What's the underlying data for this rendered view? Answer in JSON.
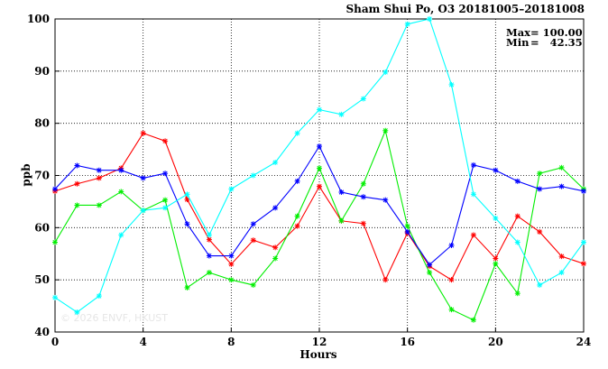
{
  "chart_data": {
    "type": "line",
    "title": "Sham Shui Po, O3 20181005–20181008",
    "xlabel": "Hours",
    "ylabel": "ppb",
    "xlim": [
      0,
      24
    ],
    "ylim": [
      40,
      100
    ],
    "x_ticks": [
      "0",
      "4",
      "8",
      "12",
      "16",
      "20",
      "24"
    ],
    "y_ticks": [
      "40",
      "50",
      "60",
      "70",
      "80",
      "90",
      "100"
    ],
    "grid": true,
    "stats": {
      "max_label": "Max",
      "max_value": "= 100.00",
      "min_label": "Min",
      "min_value": "=   42.35"
    },
    "watermark": "© 2026  ENVF, HKUST",
    "x": [
      0,
      1,
      2,
      3,
      4,
      5,
      6,
      7,
      8,
      9,
      10,
      11,
      12,
      13,
      14,
      15,
      16,
      17,
      18,
      19,
      20,
      21,
      22,
      23,
      24
    ],
    "series": [
      {
        "color": "#ff0000",
        "values": [
          67.0,
          68.4,
          69.5,
          71.4,
          78.1,
          76.6,
          65.4,
          57.7,
          53.0,
          57.6,
          56.2,
          60.3,
          67.9,
          61.3,
          60.8,
          50.0,
          59.0,
          52.6,
          50.0,
          58.6,
          54.1,
          62.2,
          59.2,
          54.5,
          53.1
        ]
      },
      {
        "color": "#00ee00",
        "values": [
          57.2,
          64.3,
          64.3,
          66.9,
          63.3,
          65.3,
          48.5,
          51.4,
          50.0,
          49.0,
          54.1,
          62.2,
          71.4,
          61.3,
          68.4,
          78.6,
          60.3,
          51.4,
          44.3,
          42.3,
          53.1,
          47.4,
          70.4,
          71.5,
          67.4
        ]
      },
      {
        "color": "#0000ff",
        "values": [
          67.4,
          71.9,
          71.0,
          71.0,
          69.5,
          70.4,
          60.7,
          54.6,
          54.6,
          60.7,
          63.8,
          68.9,
          75.6,
          66.8,
          65.9,
          65.3,
          59.2,
          52.9,
          56.6,
          72.0,
          71.0,
          68.9,
          67.4,
          67.9,
          67.0
        ]
      },
      {
        "color": "#00ffff",
        "values": [
          46.6,
          43.8,
          46.9,
          58.6,
          63.3,
          63.8,
          66.4,
          58.6,
          67.4,
          70.0,
          72.5,
          78.1,
          82.6,
          81.7,
          84.7,
          89.8,
          99.0,
          100.0,
          87.4,
          66.4,
          61.8,
          57.2,
          49.0,
          51.4,
          57.2
        ]
      }
    ]
  }
}
